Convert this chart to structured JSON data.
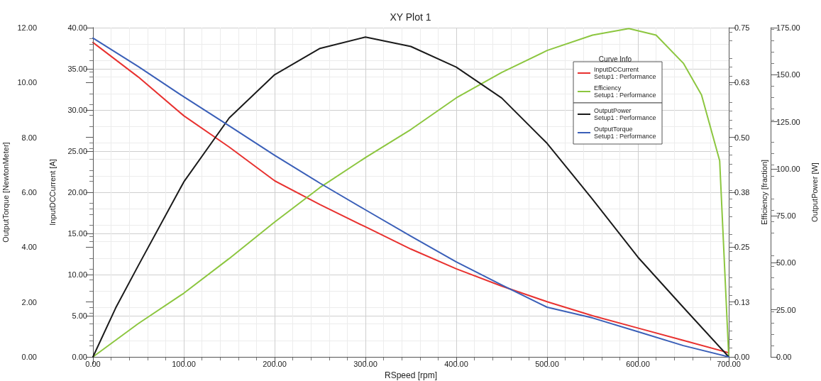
{
  "chart_data": [
    {
      "type": "line",
      "title": "XY Plot 1",
      "xlabel": "RSpeed [rpm]",
      "ylabel": "InputDCCurrent [A]",
      "y2label": "Efficiency [fraction]",
      "legend_title": "Curve Info",
      "legend": "top right",
      "grid": true,
      "marker": "none",
      "line_style": "solid",
      "xlim": [
        0,
        700
      ],
      "xticks": [
        {
          "value": 0,
          "label": "0.00"
        },
        {
          "value": 100,
          "label": "100.00"
        },
        {
          "value": 200,
          "label": "200.00"
        },
        {
          "value": 300,
          "label": "300.00"
        },
        {
          "value": 400,
          "label": "400.00"
        },
        {
          "value": 500,
          "label": "500.00"
        },
        {
          "value": 600,
          "label": "600.00"
        },
        {
          "value": 700,
          "label": "700.00"
        }
      ],
      "ylim": [
        0,
        40
      ],
      "yticks": [
        {
          "value": 0,
          "label": "0.00"
        },
        {
          "value": 5,
          "label": "5.00"
        },
        {
          "value": 10,
          "label": "10.00"
        },
        {
          "value": 15,
          "label": "15.00"
        },
        {
          "value": 20,
          "label": "20.00"
        },
        {
          "value": 25,
          "label": "25.00"
        },
        {
          "value": 30,
          "label": "30.00"
        },
        {
          "value": 35,
          "label": "35.00"
        },
        {
          "value": 40,
          "label": "40.00"
        }
      ],
      "y2lim": [
        0,
        0.75
      ],
      "y2ticks": [
        {
          "value": 0,
          "label": "0.00"
        },
        {
          "value": 0.125,
          "label": "0.13"
        },
        {
          "value": 0.25,
          "label": "0.25"
        },
        {
          "value": 0.375,
          "label": "0.38"
        },
        {
          "value": 0.5,
          "label": "0.50"
        },
        {
          "value": 0.625,
          "label": "0.63"
        },
        {
          "value": 0.75,
          "label": "0.75"
        }
      ],
      "series": [
        {
          "name": "InputDCCurrent\nSetup1 : Performance",
          "color": "#e8312f",
          "x": [
            0,
            50,
            100,
            150,
            200,
            250,
            300,
            350,
            400,
            450,
            500,
            550,
            600,
            650,
            700
          ],
          "values": [
            38.2,
            34.0,
            29.3,
            25.5,
            21.4,
            18.5,
            15.8,
            13.1,
            10.7,
            8.6,
            6.7,
            5.0,
            3.5,
            2.0,
            0.5
          ]
        },
        {
          "name": "Efficiency\nSetup1 : Performance",
          "color": "#8cc63f",
          "axis": "y2",
          "x": [
            0,
            50,
            100,
            150,
            200,
            250,
            300,
            350,
            400,
            450,
            500,
            550,
            590,
            620,
            650,
            670,
            690,
            700
          ],
          "values": [
            0,
            0.076,
            0.145,
            0.224,
            0.307,
            0.386,
            0.454,
            0.518,
            0.59,
            0.648,
            0.698,
            0.733,
            0.748,
            0.733,
            0.669,
            0.597,
            0.447,
            0
          ]
        }
      ]
    },
    {
      "type": "line",
      "ylabel": "OutputTorque [NewtonMeter]",
      "y2label": "OutputPower [W]",
      "legend": "top right",
      "marker": "none",
      "line_style": "solid",
      "tick_labels": "y",
      "xlim": [
        0,
        700
      ],
      "ylim": [
        0,
        12
      ],
      "yticks": [
        {
          "value": 0,
          "label": "0.00"
        },
        {
          "value": 2,
          "label": "2.00"
        },
        {
          "value": 4,
          "label": "4.00"
        },
        {
          "value": 6,
          "label": "6.00"
        },
        {
          "value": 8,
          "label": "8.00"
        },
        {
          "value": 10,
          "label": "10.00"
        },
        {
          "value": 12,
          "label": "12.00"
        }
      ],
      "y2lim": [
        0,
        175
      ],
      "y2ticks": [
        {
          "value": 0,
          "label": "0.00"
        },
        {
          "value": 25,
          "label": "25.00"
        },
        {
          "value": 50,
          "label": "50.00"
        },
        {
          "value": 75,
          "label": "75.00"
        },
        {
          "value": 100,
          "label": "100.00"
        },
        {
          "value": 125,
          "label": "125.00"
        },
        {
          "value": 150,
          "label": "150.00"
        },
        {
          "value": 175,
          "label": "175.00"
        }
      ],
      "series": [
        {
          "name": "OutputPower\nSetup1 : Performance",
          "color": "#1a1a1a",
          "axis": "y2",
          "x": [
            0,
            25,
            50,
            100,
            150,
            200,
            250,
            300,
            350,
            400,
            450,
            500,
            550,
            600,
            650,
            700
          ],
          "values": [
            0,
            26,
            48.6,
            93,
            127,
            150,
            164,
            170,
            165,
            154,
            137.6,
            113.5,
            83.8,
            53,
            26.3,
            0
          ]
        },
        {
          "name": "OutputTorque\nSetup1 : Performance",
          "color": "#3a5fb8",
          "x": [
            0,
            50,
            100,
            150,
            200,
            250,
            300,
            350,
            400,
            450,
            500,
            550,
            600,
            650,
            700
          ],
          "values": [
            11.62,
            10.58,
            9.48,
            8.42,
            7.35,
            6.33,
            5.36,
            4.4,
            3.46,
            2.62,
            1.81,
            1.42,
            0.92,
            0.41,
            0
          ]
        }
      ]
    }
  ]
}
